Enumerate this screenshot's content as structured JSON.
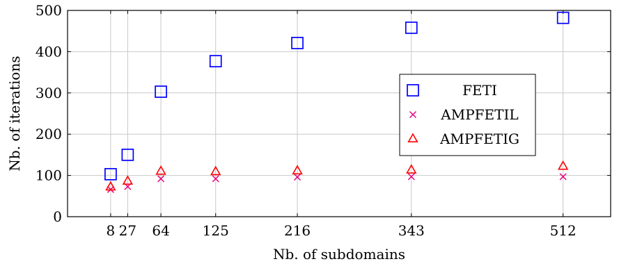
{
  "chart_data": {
    "type": "scatter",
    "xlabel": "Nb. of subdomains",
    "ylabel": "Nb. of iterations",
    "x": [
      8,
      27,
      64,
      125,
      216,
      343,
      512
    ],
    "xticks": [
      "8",
      "27",
      "64",
      "125",
      "216",
      "343",
      "512"
    ],
    "yticks": [
      "0",
      "100",
      "200",
      "300",
      "400",
      "500"
    ],
    "xlim": [
      -40,
      565
    ],
    "ylim": [
      0,
      500
    ],
    "grid": true,
    "legend_position": "center-right",
    "series": [
      {
        "name": "FETI",
        "marker": "square",
        "color": "#0000ff",
        "values": [
          103,
          150,
          303,
          377,
          421,
          458,
          482
        ]
      },
      {
        "name": "AMPFETIL",
        "marker": "cross",
        "color": "#e6007e",
        "values": [
          66,
          73,
          92,
          92,
          96,
          97,
          97
        ]
      },
      {
        "name": "AMPFETIG",
        "marker": "triangle",
        "color": "#ff0000",
        "values": [
          72,
          86,
          110,
          109,
          111,
          113,
          122
        ]
      }
    ]
  }
}
